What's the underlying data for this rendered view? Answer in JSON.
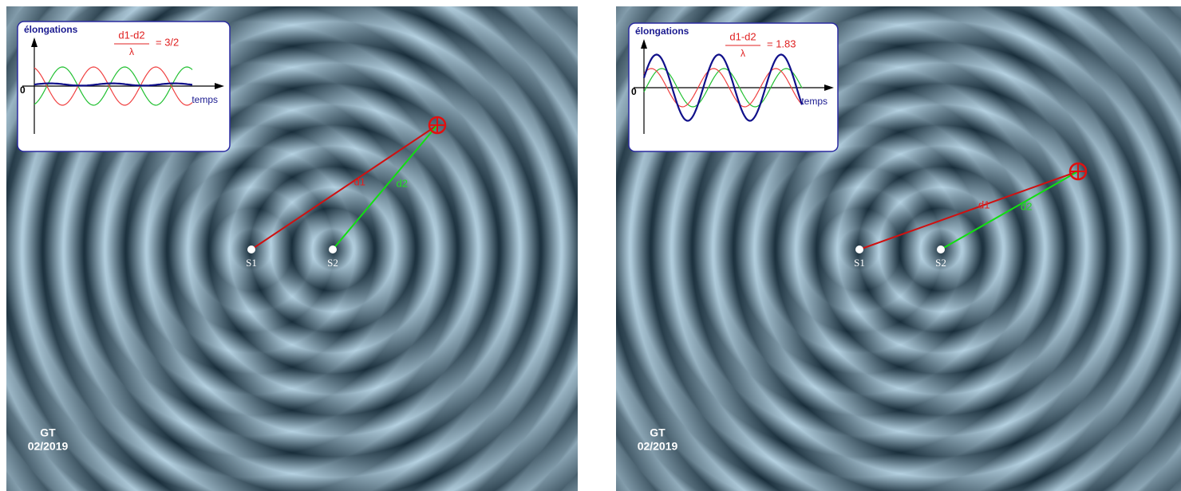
{
  "panels": [
    {
      "graph": {
        "y_label": "élongations",
        "x_label": "temps",
        "origin": "0",
        "numerator": "d1-d2",
        "denominator": "λ",
        "ratio": "= 3/2"
      },
      "paths": {
        "d1": "d1",
        "d2": "d2"
      },
      "sources": {
        "s1": "S1",
        "s2": "S2"
      },
      "credit": {
        "author": "GT",
        "date": "02/2019"
      }
    },
    {
      "graph": {
        "y_label": "élongations",
        "x_label": "temps",
        "origin": "0",
        "numerator": "d1-d2",
        "denominator": "λ",
        "ratio": "= 1.83"
      },
      "paths": {
        "d1": "d1",
        "d2": "d2"
      },
      "sources": {
        "s1": "S1",
        "s2": "S2"
      },
      "credit": {
        "author": "GT",
        "date": "02/2019"
      }
    }
  ]
}
